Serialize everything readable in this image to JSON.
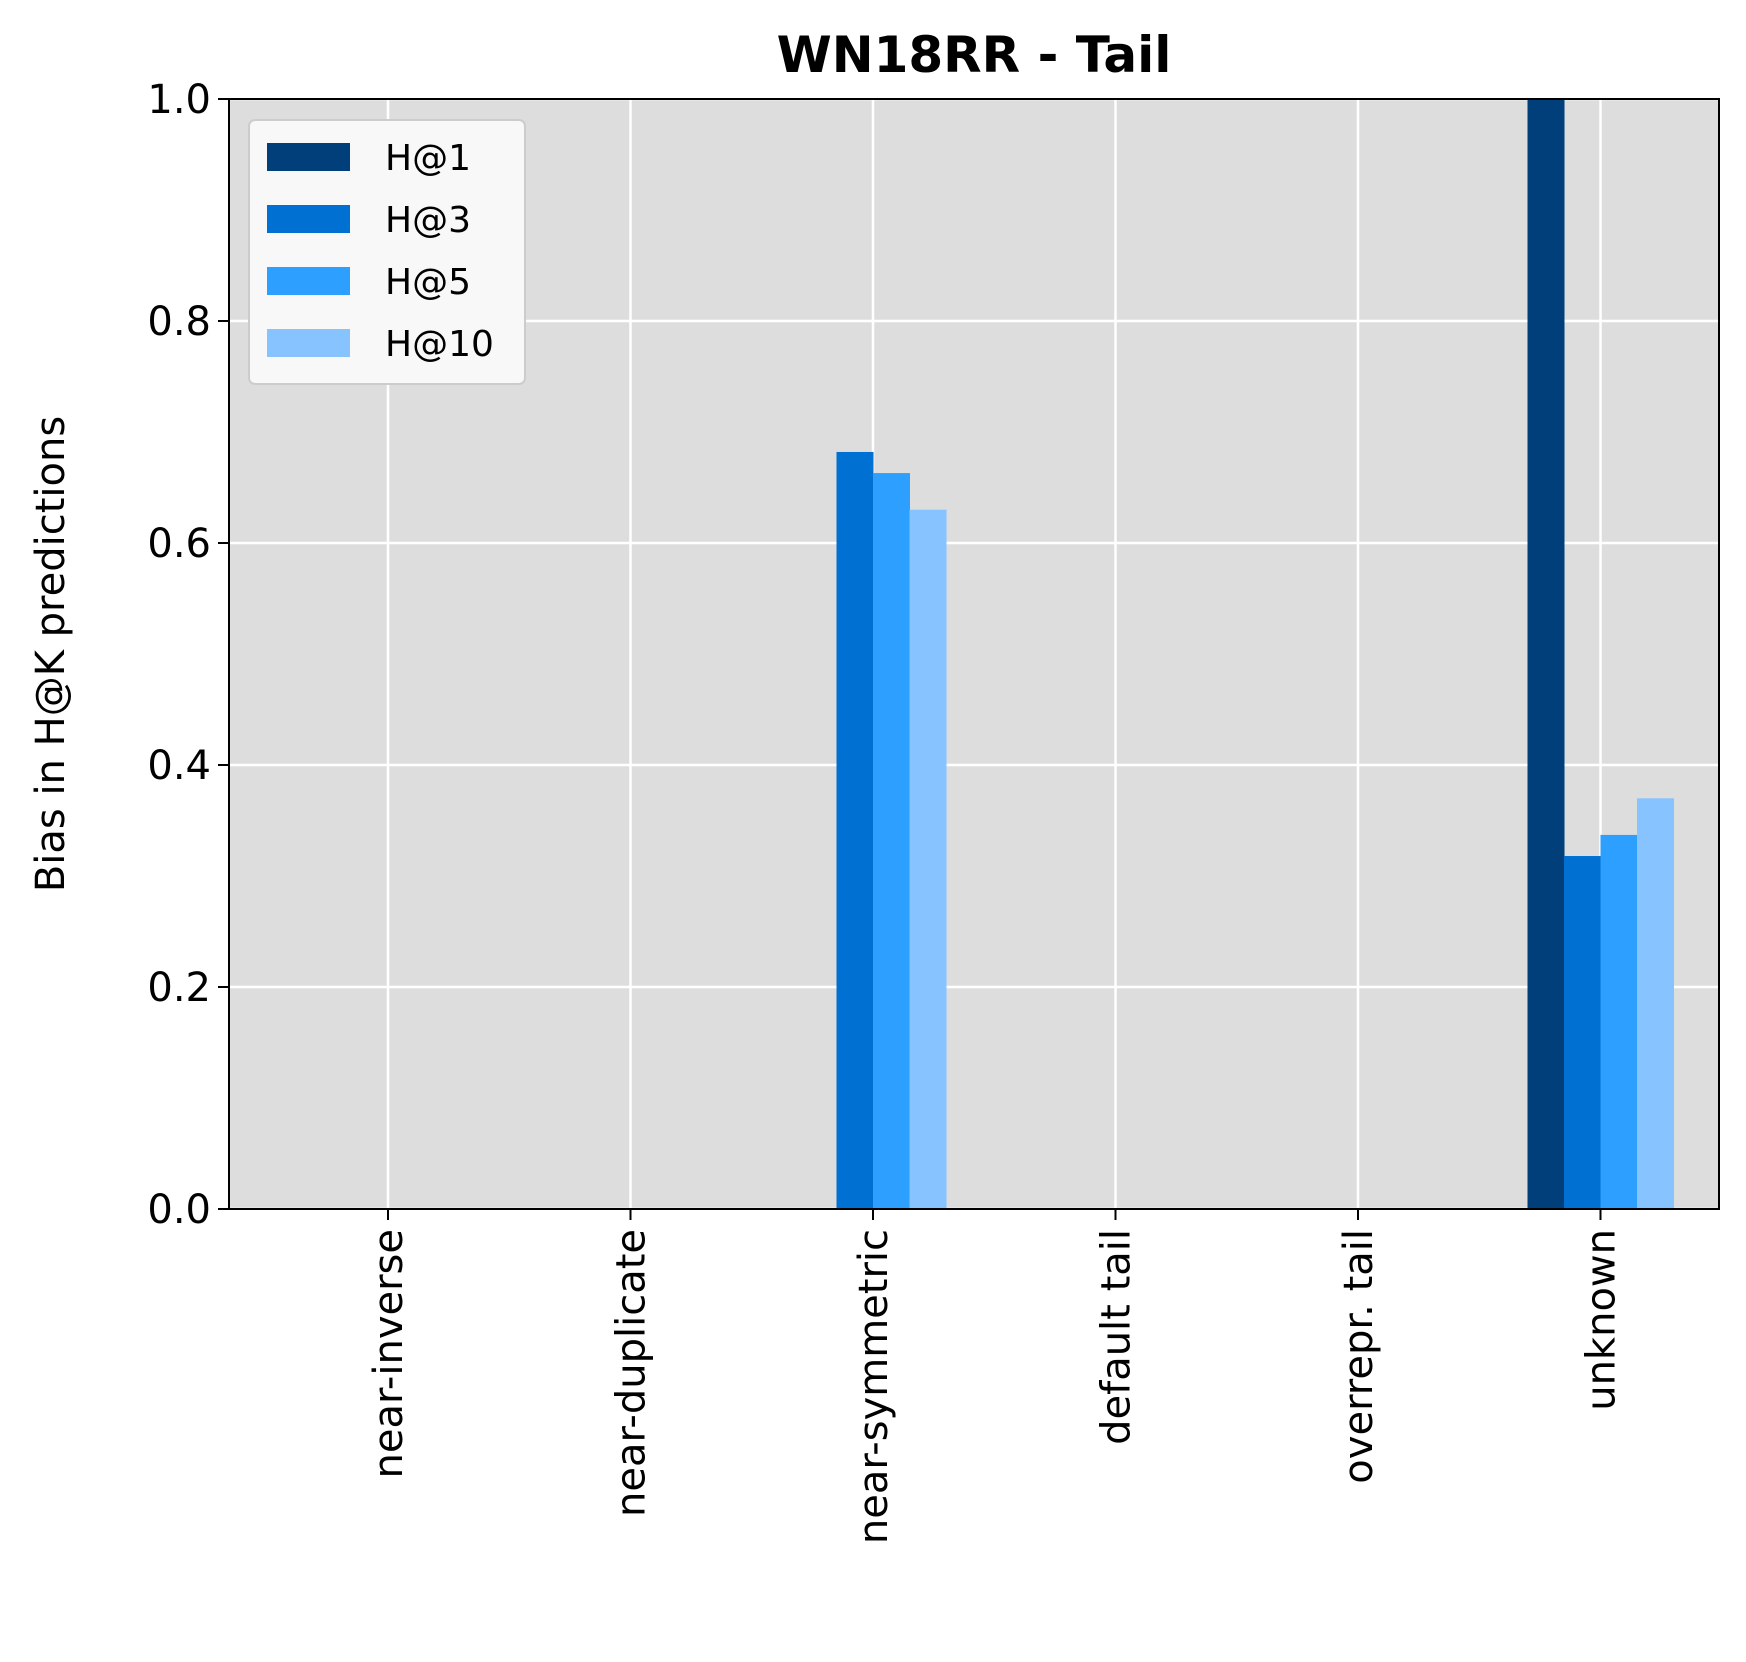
{
  "chart_data": {
    "type": "bar",
    "title": "WN18RR - Tail",
    "xlabel": "",
    "ylabel": "Bias in H@K predictions",
    "ylim": [
      0,
      1
    ],
    "yticks": [
      "0.0",
      "0.2",
      "0.4",
      "0.6",
      "0.8",
      "1.0"
    ],
    "grid": true,
    "legend_position": "top-left",
    "categories": [
      "near-inverse",
      "near-duplicate",
      "near-symmetric",
      "default tail",
      "overrepr. tail",
      "unknown"
    ],
    "series": [
      {
        "name": "H@1",
        "color": "#003f7a",
        "values": [
          0,
          0,
          0,
          0,
          0,
          1.0
        ]
      },
      {
        "name": "H@3",
        "color": "#0070d2",
        "values": [
          0,
          0,
          0.682,
          0,
          0,
          0.318
        ]
      },
      {
        "name": "H@5",
        "color": "#2c9fff",
        "values": [
          0,
          0,
          0.663,
          0,
          0,
          0.337
        ]
      },
      {
        "name": "H@10",
        "color": "#87c4ff",
        "values": [
          0,
          0,
          0.63,
          0,
          0,
          0.37
        ]
      }
    ],
    "background_color": "#dddddd"
  }
}
